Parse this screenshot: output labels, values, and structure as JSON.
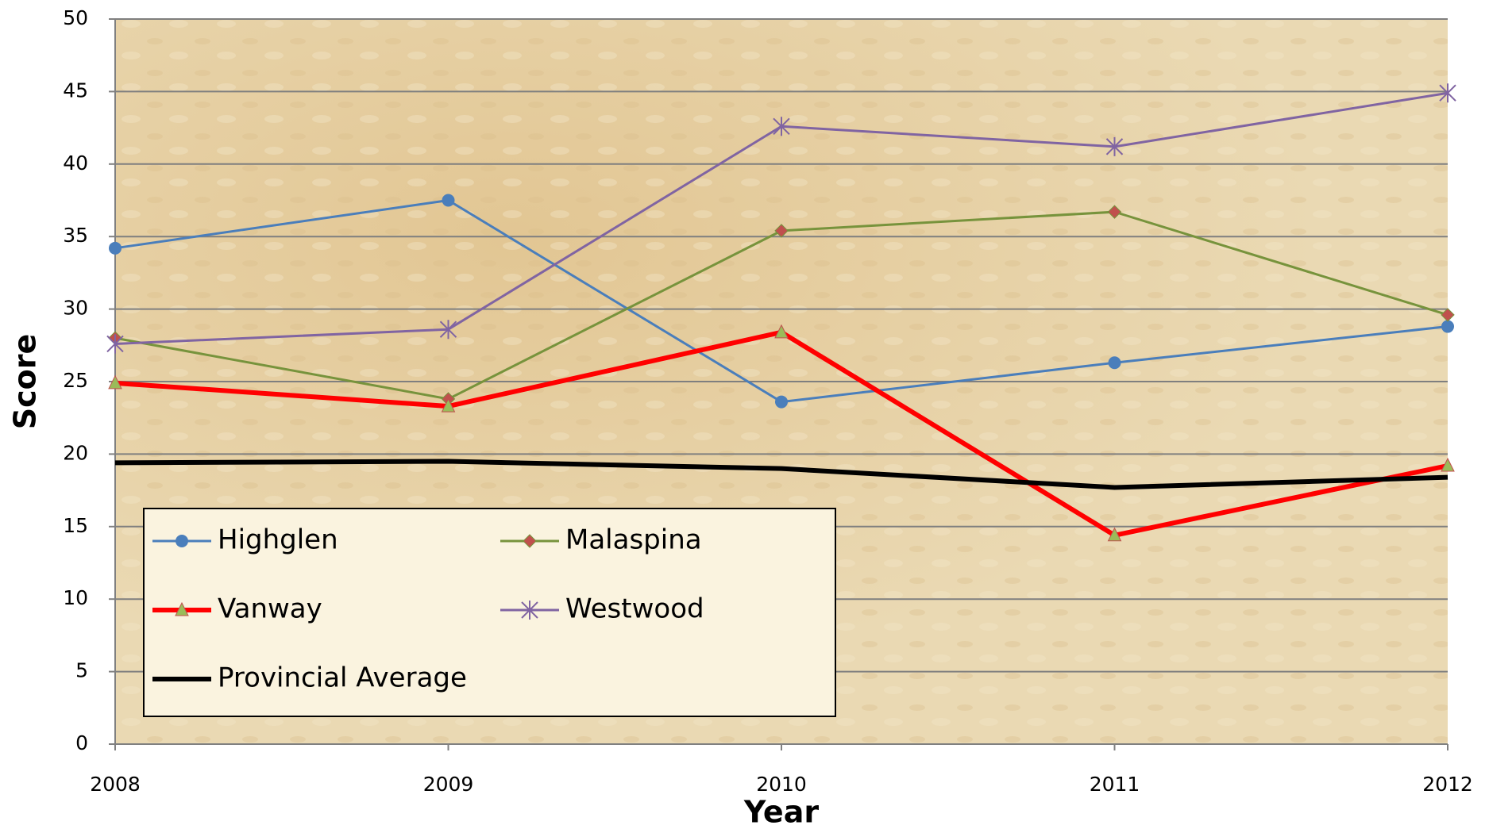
{
  "chart_data": {
    "type": "line",
    "x_label": "Year",
    "y_label": "Score",
    "x": [
      2008,
      2009,
      2010,
      2011,
      2012
    ],
    "xlim": [
      2008,
      2012
    ],
    "xticks": [
      2008,
      2009,
      2010,
      2011,
      2012
    ],
    "ylim": [
      0,
      50
    ],
    "yticks": [
      0,
      5,
      10,
      15,
      20,
      25,
      30,
      35,
      40,
      45,
      50
    ],
    "grid": true,
    "legend": "lower left",
    "series": [
      {
        "name": "Highglen",
        "color": "#4a7ebb",
        "marker": "circle",
        "marker_color": "#4a7ebb",
        "values": [
          34.2,
          37.5,
          23.6,
          26.3,
          28.8
        ]
      },
      {
        "name": "Malaspina",
        "color": "#77933c",
        "marker": "diamond",
        "marker_color": "#c0504d",
        "values": [
          28.0,
          23.8,
          35.4,
          36.7,
          29.6
        ]
      },
      {
        "name": "Vanway",
        "color": "#ff0000",
        "marker": "triangle",
        "marker_color": "#9bbb59",
        "values": [
          24.9,
          23.3,
          28.4,
          14.4,
          19.2
        ]
      },
      {
        "name": "Westwood",
        "color": "#8064a2",
        "marker": "star",
        "marker_color": "#8064a2",
        "values": [
          27.6,
          28.6,
          42.6,
          41.2,
          44.9
        ]
      },
      {
        "name": "Provincial Average",
        "color": "#000000",
        "marker": "none",
        "marker_color": "#000000",
        "values": [
          19.4,
          19.5,
          19.0,
          17.7,
          18.4
        ]
      }
    ]
  }
}
